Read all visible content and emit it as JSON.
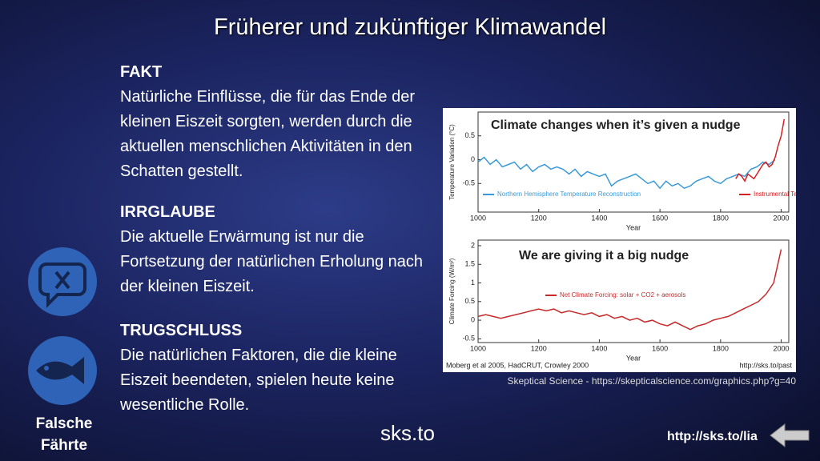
{
  "title": "Früherer und zukünftiger Klimawandel",
  "sections": [
    {
      "heading": "FAKT",
      "text": "Natürliche Einflüsse, die für das Ende der kleinen Eiszeit sorgten, werden durch die aktuellen menschlichen Aktivitäten in den Schatten gestellt."
    },
    {
      "heading": "IRRGLAUBE",
      "text": "Die aktuelle Erwärmung ist nur die Fortsetzung der natürlichen Erholung nach der kleinen Eiszeit."
    },
    {
      "heading": "TRUGSCHLUSS",
      "text": "Die natürlichen Faktoren, die die kleine Eiszeit beendeten, spielen heute keine wesentliche Rolle."
    }
  ],
  "side_label": "Falsche Fährte",
  "logo": "sks.to",
  "link": "http://sks.to/lia",
  "image_caption": "Skeptical Science - https://skepticalscience.com/graphics.php?g=40",
  "chart_credit": "Moberg et al 2005, HadCRUT, Crowley 2000",
  "chart_url": "http://sks.to/past",
  "chart_data": [
    {
      "type": "line",
      "title": "Climate changes when it’s given a nudge",
      "xlabel": "Year",
      "ylabel": "Temperature Variation (°C)",
      "xlim": [
        1000,
        2025
      ],
      "xticks": [
        1000,
        1200,
        1400,
        1600,
        1800,
        2000
      ],
      "ylim": [
        -1.1,
        1.0
      ],
      "yticks": [
        -0.5,
        0,
        0.5
      ],
      "series": [
        {
          "name": "Northern Hemisphere Temperature Reconstruction",
          "color": "#3a9ad9",
          "x": [
            1000,
            1020,
            1040,
            1060,
            1080,
            1100,
            1120,
            1140,
            1160,
            1180,
            1200,
            1220,
            1240,
            1260,
            1280,
            1300,
            1320,
            1340,
            1360,
            1380,
            1400,
            1420,
            1440,
            1460,
            1480,
            1500,
            1520,
            1540,
            1560,
            1580,
            1600,
            1620,
            1640,
            1660,
            1680,
            1700,
            1720,
            1740,
            1760,
            1780,
            1800,
            1820,
            1840,
            1860,
            1880,
            1900,
            1920,
            1940,
            1960,
            1980
          ],
          "values": [
            -0.05,
            0.05,
            -0.1,
            0.0,
            -0.15,
            -0.1,
            -0.05,
            -0.2,
            -0.1,
            -0.25,
            -0.15,
            -0.1,
            -0.2,
            -0.15,
            -0.2,
            -0.3,
            -0.2,
            -0.35,
            -0.25,
            -0.3,
            -0.35,
            -0.3,
            -0.55,
            -0.45,
            -0.4,
            -0.35,
            -0.3,
            -0.4,
            -0.5,
            -0.45,
            -0.6,
            -0.45,
            -0.55,
            -0.5,
            -0.6,
            -0.55,
            -0.45,
            -0.4,
            -0.35,
            -0.45,
            -0.5,
            -0.4,
            -0.35,
            -0.3,
            -0.35,
            -0.2,
            -0.15,
            -0.05,
            -0.1,
            0.0
          ]
        },
        {
          "name": "Instrumental Temperature",
          "color": "#d42020",
          "x": [
            1850,
            1860,
            1870,
            1880,
            1890,
            1900,
            1910,
            1920,
            1930,
            1940,
            1950,
            1960,
            1970,
            1980,
            1990,
            2000,
            2010
          ],
          "values": [
            -0.4,
            -0.3,
            -0.35,
            -0.45,
            -0.3,
            -0.35,
            -0.4,
            -0.3,
            -0.2,
            -0.1,
            -0.05,
            -0.15,
            -0.1,
            0.05,
            0.3,
            0.5,
            0.85
          ]
        }
      ]
    },
    {
      "type": "line",
      "title": "We are giving it a big nudge",
      "xlabel": "Year",
      "ylabel": "Climate Forcing (W/m²)",
      "xlim": [
        1000,
        2025
      ],
      "xticks": [
        1000,
        1200,
        1400,
        1600,
        1800,
        2000
      ],
      "ylim": [
        -0.6,
        2.15
      ],
      "yticks": [
        -0.5,
        0,
        0.5,
        1,
        1.5,
        2
      ],
      "series": [
        {
          "name": "Net Climate Forcing: solar + CO2 + aerosols",
          "color": "#c62a2a",
          "x": [
            1000,
            1025,
            1050,
            1075,
            1100,
            1125,
            1150,
            1175,
            1200,
            1225,
            1250,
            1275,
            1300,
            1325,
            1350,
            1375,
            1400,
            1425,
            1450,
            1475,
            1500,
            1525,
            1550,
            1575,
            1600,
            1625,
            1650,
            1675,
            1700,
            1725,
            1750,
            1775,
            1800,
            1825,
            1850,
            1875,
            1900,
            1925,
            1950,
            1975,
            2000
          ],
          "values": [
            0.1,
            0.15,
            0.1,
            0.05,
            0.1,
            0.15,
            0.2,
            0.25,
            0.3,
            0.25,
            0.3,
            0.2,
            0.25,
            0.2,
            0.15,
            0.2,
            0.1,
            0.15,
            0.05,
            0.1,
            0.0,
            0.05,
            -0.05,
            0.0,
            -0.1,
            -0.15,
            -0.05,
            -0.15,
            -0.25,
            -0.15,
            -0.1,
            0.0,
            0.05,
            0.1,
            0.2,
            0.3,
            0.4,
            0.5,
            0.7,
            1.0,
            1.9
          ]
        }
      ]
    }
  ]
}
